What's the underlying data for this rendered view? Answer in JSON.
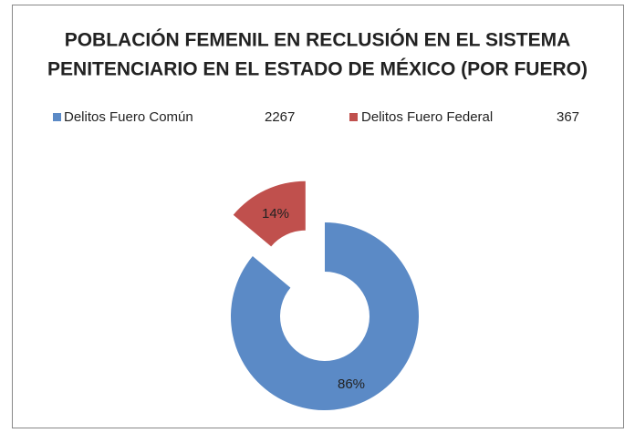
{
  "chart_data": {
    "type": "donut",
    "title": [
      "POBLACIÓN FEMENIL EN RECLUSIÓN EN EL SISTEMA",
      "PENITENCIARIO EN EL ESTADO DE MÉXICO (POR FUERO)"
    ],
    "categories": [
      "Delitos Fuero Común",
      "Delitos Fuero Federal"
    ],
    "values": [
      2267,
      367
    ],
    "value_labels": [
      "86%",
      "14%"
    ],
    "colors": [
      "#5b8ac6",
      "#c0504d"
    ],
    "legend": "top"
  }
}
